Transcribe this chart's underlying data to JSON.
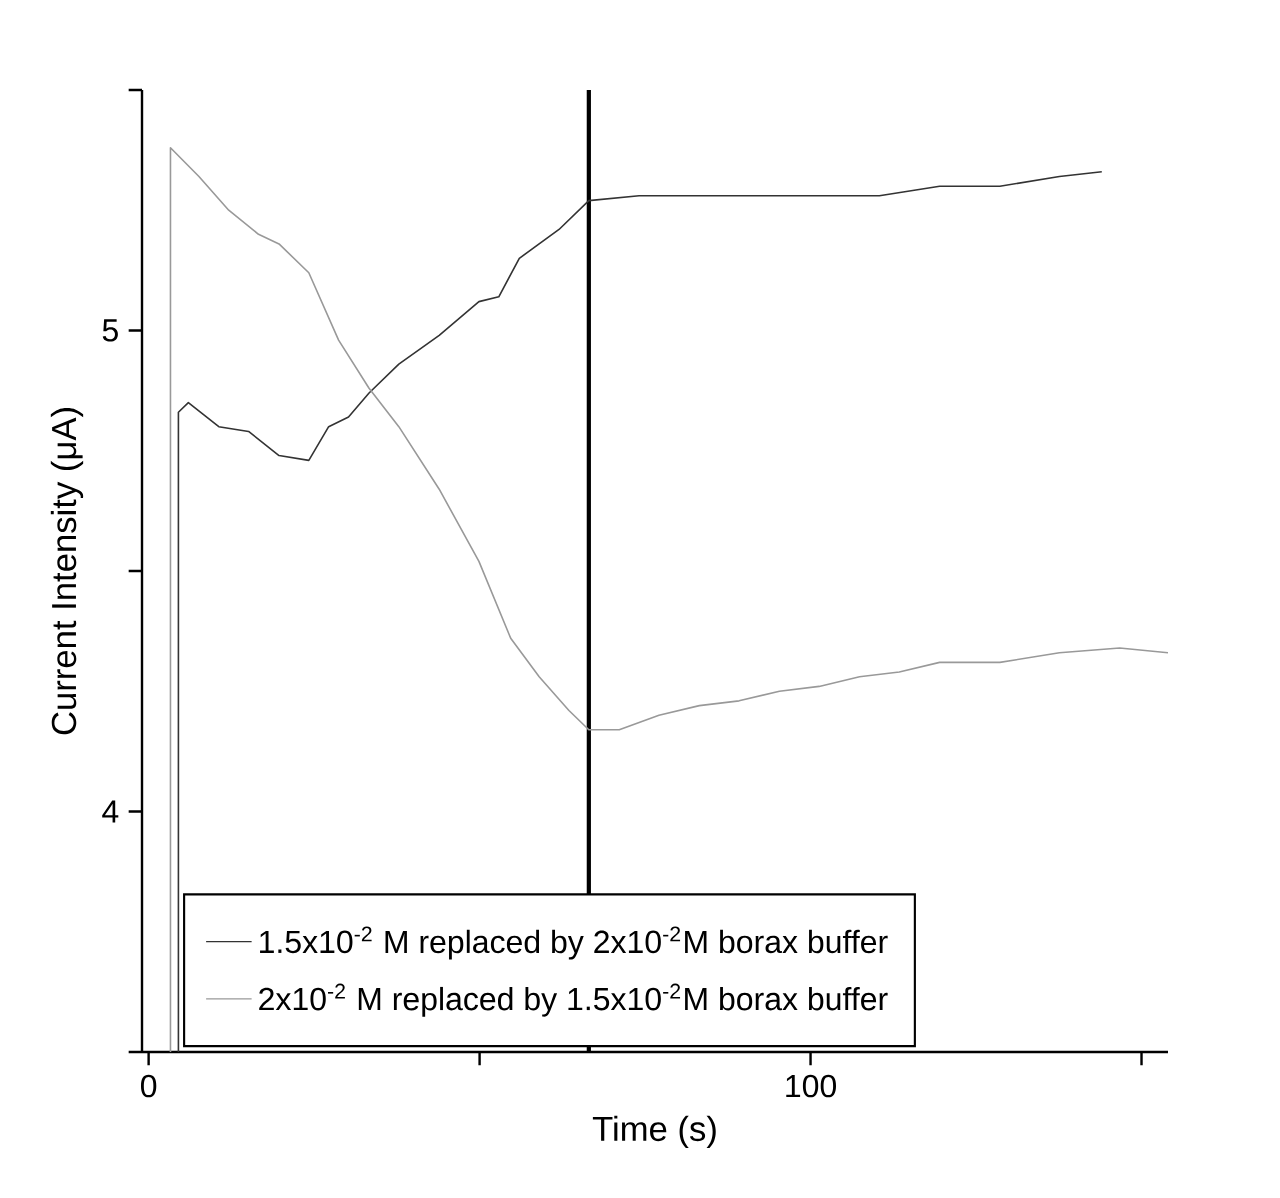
{
  "chart_data": {
    "type": "line",
    "xlabel": "Time (s)",
    "ylabel": "Current Intensity (μA)",
    "xlim": [
      -1,
      154
    ],
    "ylim": [
      3.5,
      5.5
    ],
    "xticks": [
      0,
      {
        "value": 50,
        "label": null
      },
      100,
      {
        "value": 150,
        "label": null
      }
    ],
    "yticks": [
      {
        "value": 3.5,
        "label": null
      },
      4,
      {
        "value": 4.5,
        "label": null
      },
      5,
      {
        "value": 5.5,
        "label": null
      }
    ],
    "grid": false,
    "legend": "bottom",
    "marker": "none",
    "line_style": "solid",
    "ref_lines": [
      {
        "axis": "x",
        "value": 66.5,
        "color": "#000000"
      }
    ],
    "series": [
      {
        "name": "1.5x10$^{-2}$ M replaced by 2x10$^{-2}$M borax buffer",
        "color": "#333333",
        "x": [
          4.5,
          4.5,
          6.0,
          10.6,
          15.1,
          19.7,
          24.2,
          27.2,
          30.2,
          33.3,
          37.8,
          43.9,
          49.9,
          52.9,
          56.0,
          62.0,
          66.5,
          74.1,
          83.2,
          92.3,
          101.3,
          110.4,
          119.5,
          128.6,
          137.6,
          144.0
        ],
        "values": [
          3.5,
          4.83,
          4.85,
          4.8,
          4.79,
          4.74,
          4.73,
          4.8,
          4.82,
          4.87,
          4.93,
          4.99,
          5.06,
          5.07,
          5.15,
          5.21,
          5.27,
          5.28,
          5.28,
          5.28,
          5.28,
          5.28,
          5.3,
          5.3,
          5.32,
          5.33
        ]
      },
      {
        "name": "2x10$^{-2}$ M replaced by 1.5x10$^{-2}$M borax buffer",
        "color": "#999999",
        "x": [
          3.3,
          3.3,
          7.6,
          12.1,
          16.6,
          19.7,
          24.2,
          28.7,
          33.3,
          37.8,
          43.9,
          49.9,
          54.7,
          59.0,
          63.5,
          66.5,
          71.1,
          77.1,
          83.2,
          89.2,
          95.3,
          101.3,
          107.4,
          113.4,
          119.5,
          128.6,
          137.6,
          146.7,
          154.0
        ],
        "values": [
          3.5,
          5.38,
          5.32,
          5.25,
          5.2,
          5.18,
          5.12,
          4.98,
          4.88,
          4.8,
          4.67,
          4.52,
          4.36,
          4.28,
          4.21,
          4.17,
          4.17,
          4.2,
          4.22,
          4.23,
          4.25,
          4.26,
          4.28,
          4.29,
          4.31,
          4.31,
          4.33,
          4.34,
          4.33
        ]
      }
    ]
  }
}
